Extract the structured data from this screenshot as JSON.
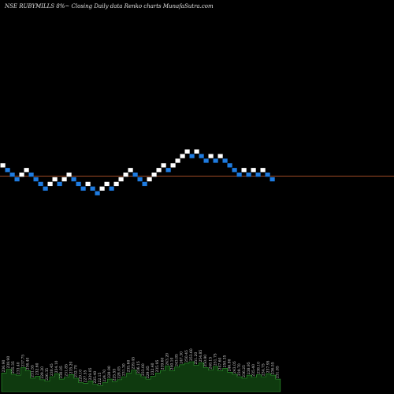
{
  "header": {
    "title": "NSE RUBYMILLS 8%~  Closing Daily data  Renko  charts MunafaSutra.com"
  },
  "colors": {
    "background": "#000000",
    "up_brick": "#ffffff",
    "down_brick": "#1e7be0",
    "ref_line": "#b5542a",
    "volume_area": "#0f3a0f",
    "volume_edge": "#2f9e2f"
  },
  "chart_data": {
    "type": "renko",
    "reference_level": 235.9,
    "bricks": [
      {
        "value": 245,
        "dir": "up"
      },
      {
        "value": 241,
        "dir": "down"
      },
      {
        "value": 237,
        "dir": "down"
      },
      {
        "value": 233,
        "dir": "down"
      },
      {
        "value": 237,
        "dir": "up"
      },
      {
        "value": 241,
        "dir": "up"
      },
      {
        "value": 237,
        "dir": "down"
      },
      {
        "value": 233,
        "dir": "down"
      },
      {
        "value": 229,
        "dir": "down"
      },
      {
        "value": 225,
        "dir": "down"
      },
      {
        "value": 229,
        "dir": "up"
      },
      {
        "value": 233,
        "dir": "up"
      },
      {
        "value": 229,
        "dir": "down"
      },
      {
        "value": 233,
        "dir": "up"
      },
      {
        "value": 237,
        "dir": "up"
      },
      {
        "value": 233,
        "dir": "down"
      },
      {
        "value": 229,
        "dir": "down"
      },
      {
        "value": 225,
        "dir": "down"
      },
      {
        "value": 229,
        "dir": "up"
      },
      {
        "value": 225,
        "dir": "down"
      },
      {
        "value": 221,
        "dir": "down"
      },
      {
        "value": 225,
        "dir": "up"
      },
      {
        "value": 229,
        "dir": "up"
      },
      {
        "value": 225,
        "dir": "down"
      },
      {
        "value": 229,
        "dir": "up"
      },
      {
        "value": 233,
        "dir": "up"
      },
      {
        "value": 237,
        "dir": "up"
      },
      {
        "value": 241,
        "dir": "up"
      },
      {
        "value": 237,
        "dir": "down"
      },
      {
        "value": 233,
        "dir": "down"
      },
      {
        "value": 229,
        "dir": "down"
      },
      {
        "value": 233,
        "dir": "up"
      },
      {
        "value": 237,
        "dir": "up"
      },
      {
        "value": 241,
        "dir": "up"
      },
      {
        "value": 245,
        "dir": "up"
      },
      {
        "value": 241,
        "dir": "down"
      },
      {
        "value": 245,
        "dir": "up"
      },
      {
        "value": 249,
        "dir": "up"
      },
      {
        "value": 253,
        "dir": "up"
      },
      {
        "value": 257,
        "dir": "up"
      },
      {
        "value": 253,
        "dir": "down"
      },
      {
        "value": 257,
        "dir": "up"
      },
      {
        "value": 253,
        "dir": "down"
      },
      {
        "value": 249,
        "dir": "down"
      },
      {
        "value": 253,
        "dir": "up"
      },
      {
        "value": 249,
        "dir": "down"
      },
      {
        "value": 253,
        "dir": "up"
      },
      {
        "value": 249,
        "dir": "down"
      },
      {
        "value": 245,
        "dir": "down"
      },
      {
        "value": 241,
        "dir": "down"
      },
      {
        "value": 237,
        "dir": "down"
      },
      {
        "value": 241,
        "dir": "up"
      },
      {
        "value": 237,
        "dir": "down"
      },
      {
        "value": 241,
        "dir": "up"
      },
      {
        "value": 237,
        "dir": "down"
      },
      {
        "value": 241,
        "dir": "up"
      },
      {
        "value": 237,
        "dir": "down"
      },
      {
        "value": 233,
        "dir": "down"
      }
    ],
    "volume_labels": [
      "236.90",
      "238.90",
      "235.35",
      "233.40",
      "237.75",
      "236.40",
      "231.55",
      "232.60",
      "229.20",
      "226.35",
      "230.45",
      "234.10",
      "230.05",
      "231.85",
      "235.20",
      "232.70",
      "229.10",
      "227.55",
      "229.05",
      "225.40",
      "222.15",
      "224.70",
      "228.90",
      "225.55",
      "228.05",
      "231.30",
      "235.60",
      "239.45",
      "236.15",
      "233.00",
      "229.85",
      "232.40",
      "235.95",
      "239.60",
      "243.20",
      "240.10",
      "243.85",
      "247.30",
      "250.45",
      "253.60",
      "251.20",
      "254.85",
      "250.90",
      "248.15",
      "251.75",
      "247.60",
      "250.35",
      "246.80",
      "243.05",
      "239.70",
      "236.25",
      "238.95",
      "235.40",
      "238.10",
      "234.75",
      "237.95",
      "236.55",
      "231.85"
    ],
    "volume_levels": [
      0.62,
      0.75,
      0.58,
      0.55,
      0.8,
      0.7,
      0.45,
      0.52,
      0.4,
      0.35,
      0.5,
      0.6,
      0.42,
      0.48,
      0.57,
      0.45,
      0.3,
      0.28,
      0.36,
      0.25,
      0.2,
      0.3,
      0.42,
      0.33,
      0.4,
      0.5,
      0.62,
      0.72,
      0.58,
      0.5,
      0.42,
      0.52,
      0.62,
      0.7,
      0.85,
      0.7,
      0.82,
      0.9,
      0.95,
      1.0,
      0.88,
      0.96,
      0.8,
      0.72,
      0.84,
      0.7,
      0.78,
      0.65,
      0.58,
      0.5,
      0.45,
      0.55,
      0.48,
      0.56,
      0.5,
      0.6,
      0.55,
      0.42
    ]
  }
}
